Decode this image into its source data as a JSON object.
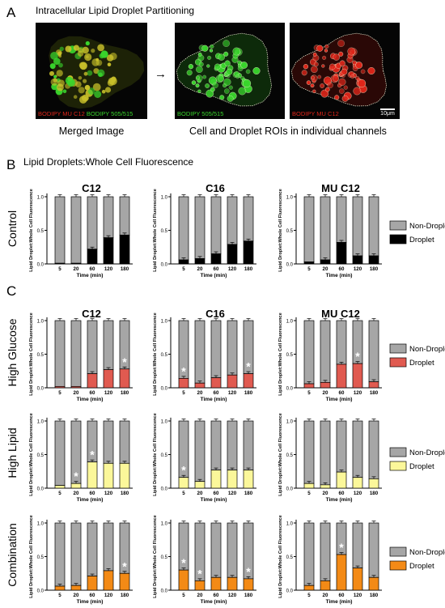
{
  "panel_letters": {
    "a": "A",
    "b": "B",
    "c": "C"
  },
  "panel_a": {
    "title": "Intracellular Lipid Droplet Partitioning",
    "arrow": "→",
    "merged_caption": "Merged Image",
    "rois_caption": "Cell and Droplet ROIs in individual channels",
    "merged_label_red": "BODIPY MU C12",
    "merged_label_green": "BODIPY 505/515",
    "green_channel_label": "BODIPY 505/515",
    "red_channel_label": "BODIPY MU C12",
    "scale_bar": "10μm",
    "colors": {
      "green": "#39d52c",
      "red": "#e0261a",
      "yellow": "#c9c12a",
      "outline": "#d8d8c0"
    }
  },
  "panel_b": {
    "title": "Lipid Droplets:Whole Cell Fluorescence"
  },
  "columns": [
    "C12",
    "C16",
    "MU C12"
  ],
  "rows": [
    "Control",
    "High Glucose",
    "High Lipid",
    "Combination"
  ],
  "legend": {
    "non_droplet": "Non-Droplet",
    "droplet": "Droplet"
  },
  "colors": {
    "non_droplet": "#a6a6a6",
    "control": "#000000",
    "high_glucose": "#e05a50",
    "high_lipid": "#fbf79a",
    "combination": "#f38a16"
  },
  "chart_data": [
    {
      "type": "bar",
      "stacked": true,
      "condition": "Control",
      "fatty_acid": "C12",
      "categories": [
        "5",
        "20",
        "60",
        "120",
        "180"
      ],
      "series": [
        {
          "name": "Droplet",
          "values": [
            0.01,
            0.01,
            0.22,
            0.39,
            0.43
          ]
        },
        {
          "name": "Non-Droplet",
          "values": [
            0.99,
            0.99,
            0.78,
            0.61,
            0.57
          ]
        }
      ],
      "significant": [],
      "xlabel": "Time (min)",
      "ylabel": "Lipid Droplet:Whole Cell Fluorescence",
      "yticks": [
        "0.0",
        "0.5",
        "1.0"
      ],
      "ylim": [
        0,
        1.1
      ]
    },
    {
      "type": "bar",
      "stacked": true,
      "condition": "Control",
      "fatty_acid": "C16",
      "categories": [
        "5",
        "20",
        "60",
        "120",
        "180"
      ],
      "series": [
        {
          "name": "Droplet",
          "values": [
            0.06,
            0.08,
            0.15,
            0.29,
            0.34
          ]
        },
        {
          "name": "Non-Droplet",
          "values": [
            0.94,
            0.92,
            0.85,
            0.71,
            0.66
          ]
        }
      ],
      "significant": [],
      "xlabel": "Time (min)",
      "ylabel": "Lipid Droplet:Whole Cell Fluorescence",
      "yticks": [
        "0.0",
        "0.5",
        "1.0"
      ],
      "ylim": [
        0,
        1.1
      ]
    },
    {
      "type": "bar",
      "stacked": true,
      "condition": "Control",
      "fatty_acid": "MU C12",
      "categories": [
        "5",
        "20",
        "60",
        "120",
        "180"
      ],
      "series": [
        {
          "name": "Droplet",
          "values": [
            0.03,
            0.06,
            0.32,
            0.12,
            0.12
          ]
        },
        {
          "name": "Non-Droplet",
          "values": [
            0.97,
            0.94,
            0.68,
            0.88,
            0.88
          ]
        }
      ],
      "significant": [],
      "xlabel": "Time (min)",
      "ylabel": "Lipid Droplet:Whole Cell Fluorescence",
      "yticks": [
        "0.0",
        "0.5",
        "1.0"
      ],
      "ylim": [
        0,
        1.1
      ]
    },
    {
      "type": "bar",
      "stacked": true,
      "condition": "High Glucose",
      "fatty_acid": "C12",
      "categories": [
        "5",
        "20",
        "60",
        "120",
        "180"
      ],
      "series": [
        {
          "name": "Droplet",
          "values": [
            0.02,
            0.02,
            0.21,
            0.27,
            0.28
          ]
        },
        {
          "name": "Non-Droplet",
          "values": [
            0.98,
            0.98,
            0.79,
            0.73,
            0.72
          ]
        }
      ],
      "significant": [
        "180"
      ],
      "xlabel": "Time (min)",
      "ylabel": "Lipid Droplet:Whole Cell Fluorescence",
      "yticks": [
        "0.0",
        "0.5",
        "1.0"
      ],
      "ylim": [
        0,
        1.1
      ]
    },
    {
      "type": "bar",
      "stacked": true,
      "condition": "High Glucose",
      "fatty_acid": "C16",
      "categories": [
        "5",
        "20",
        "60",
        "120",
        "180"
      ],
      "series": [
        {
          "name": "Droplet",
          "values": [
            0.14,
            0.07,
            0.15,
            0.19,
            0.21
          ]
        },
        {
          "name": "Non-Droplet",
          "values": [
            0.86,
            0.93,
            0.85,
            0.81,
            0.79
          ]
        }
      ],
      "significant": [
        "5",
        "180"
      ],
      "xlabel": "Time (min)",
      "ylabel": "Lipid Droplet:Whole Cell Fluorescence",
      "yticks": [
        "0.0",
        "0.5",
        "1.0"
      ],
      "ylim": [
        0,
        1.1
      ]
    },
    {
      "type": "bar",
      "stacked": true,
      "condition": "High Glucose",
      "fatty_acid": "MU C12",
      "categories": [
        "5",
        "20",
        "60",
        "120",
        "180"
      ],
      "series": [
        {
          "name": "Droplet",
          "values": [
            0.06,
            0.08,
            0.35,
            0.36,
            0.09
          ]
        },
        {
          "name": "Non-Droplet",
          "values": [
            0.94,
            0.92,
            0.65,
            0.64,
            0.91
          ]
        }
      ],
      "significant": [
        "120"
      ],
      "xlabel": "Time (min)",
      "ylabel": "Lipid Droplet:Whole Cell Fluorescence",
      "yticks": [
        "0.0",
        "0.5",
        "1.0"
      ],
      "ylim": [
        0,
        1.1
      ]
    },
    {
      "type": "bar",
      "stacked": true,
      "condition": "High Lipid",
      "fatty_acid": "C12",
      "categories": [
        "5",
        "20",
        "60",
        "120",
        "180"
      ],
      "series": [
        {
          "name": "Droplet",
          "values": [
            0.04,
            0.07,
            0.39,
            0.37,
            0.37
          ]
        },
        {
          "name": "Non-Droplet",
          "values": [
            0.96,
            0.93,
            0.61,
            0.63,
            0.63
          ]
        }
      ],
      "significant": [
        "20",
        "60"
      ],
      "xlabel": "Time (min)",
      "ylabel": "Lipid Droplet:Whole Cell Fluorescence",
      "yticks": [
        "0.0",
        "0.5",
        "1.0"
      ],
      "ylim": [
        0,
        1.1
      ]
    },
    {
      "type": "bar",
      "stacked": true,
      "condition": "High Lipid",
      "fatty_acid": "C16",
      "categories": [
        "5",
        "20",
        "60",
        "120",
        "180"
      ],
      "series": [
        {
          "name": "Droplet",
          "values": [
            0.16,
            0.1,
            0.27,
            0.27,
            0.27
          ]
        },
        {
          "name": "Non-Droplet",
          "values": [
            0.84,
            0.9,
            0.73,
            0.73,
            0.73
          ]
        }
      ],
      "significant": [
        "5"
      ],
      "xlabel": "Time (min)",
      "ylabel": "Lipid Droplet:Whole Cell Fluorescence",
      "yticks": [
        "0.0",
        "0.5",
        "1.0"
      ],
      "ylim": [
        0,
        1.1
      ]
    },
    {
      "type": "bar",
      "stacked": true,
      "condition": "High Lipid",
      "fatty_acid": "MU C12",
      "categories": [
        "5",
        "20",
        "60",
        "120",
        "180"
      ],
      "series": [
        {
          "name": "Droplet",
          "values": [
            0.07,
            0.05,
            0.24,
            0.16,
            0.14
          ]
        },
        {
          "name": "Non-Droplet",
          "values": [
            0.93,
            0.95,
            0.76,
            0.84,
            0.86
          ]
        }
      ],
      "significant": [],
      "xlabel": "Time (min)",
      "ylabel": "Lipid Droplet:Whole Cell Fluorescence",
      "yticks": [
        "0.0",
        "0.5",
        "1.0"
      ],
      "ylim": [
        0,
        1.1
      ]
    },
    {
      "type": "bar",
      "stacked": true,
      "condition": "Combination",
      "fatty_acid": "C12",
      "categories": [
        "5",
        "20",
        "60",
        "120",
        "180"
      ],
      "series": [
        {
          "name": "Droplet",
          "values": [
            0.06,
            0.07,
            0.21,
            0.29,
            0.25
          ]
        },
        {
          "name": "Non-Droplet",
          "values": [
            0.94,
            0.93,
            0.79,
            0.71,
            0.75
          ]
        }
      ],
      "significant": [
        "180"
      ],
      "xlabel": "Time (min)",
      "ylabel": "Lipid Droplet:Whole Cell Fluorescence",
      "yticks": [
        "0.0",
        "0.5",
        "1.0"
      ],
      "ylim": [
        0,
        1.1
      ]
    },
    {
      "type": "bar",
      "stacked": true,
      "condition": "Combination",
      "fatty_acid": "C16",
      "categories": [
        "5",
        "20",
        "60",
        "120",
        "180"
      ],
      "series": [
        {
          "name": "Droplet",
          "values": [
            0.3,
            0.14,
            0.19,
            0.19,
            0.17
          ]
        },
        {
          "name": "Non-Droplet",
          "values": [
            0.7,
            0.86,
            0.81,
            0.81,
            0.83
          ]
        }
      ],
      "significant": [
        "5",
        "20",
        "180"
      ],
      "xlabel": "Time (min)",
      "ylabel": "Lipid Droplet:Whole Cell Fluorescence",
      "yticks": [
        "0.0",
        "0.5",
        "1.0"
      ],
      "ylim": [
        0,
        1.1
      ]
    },
    {
      "type": "bar",
      "stacked": true,
      "condition": "Combination",
      "fatty_acid": "MU C12",
      "categories": [
        "5",
        "20",
        "60",
        "120",
        "180"
      ],
      "series": [
        {
          "name": "Droplet",
          "values": [
            0.07,
            0.14,
            0.53,
            0.33,
            0.19
          ]
        },
        {
          "name": "Non-Droplet",
          "values": [
            0.93,
            0.86,
            0.47,
            0.67,
            0.81
          ]
        }
      ],
      "significant": [
        "60"
      ],
      "xlabel": "Time (min)",
      "ylabel": "Lipid Droplet:Whole Cell Fluorescence",
      "yticks": [
        "0.0",
        "0.5",
        "1.0"
      ],
      "ylim": [
        0,
        1.1
      ]
    }
  ]
}
